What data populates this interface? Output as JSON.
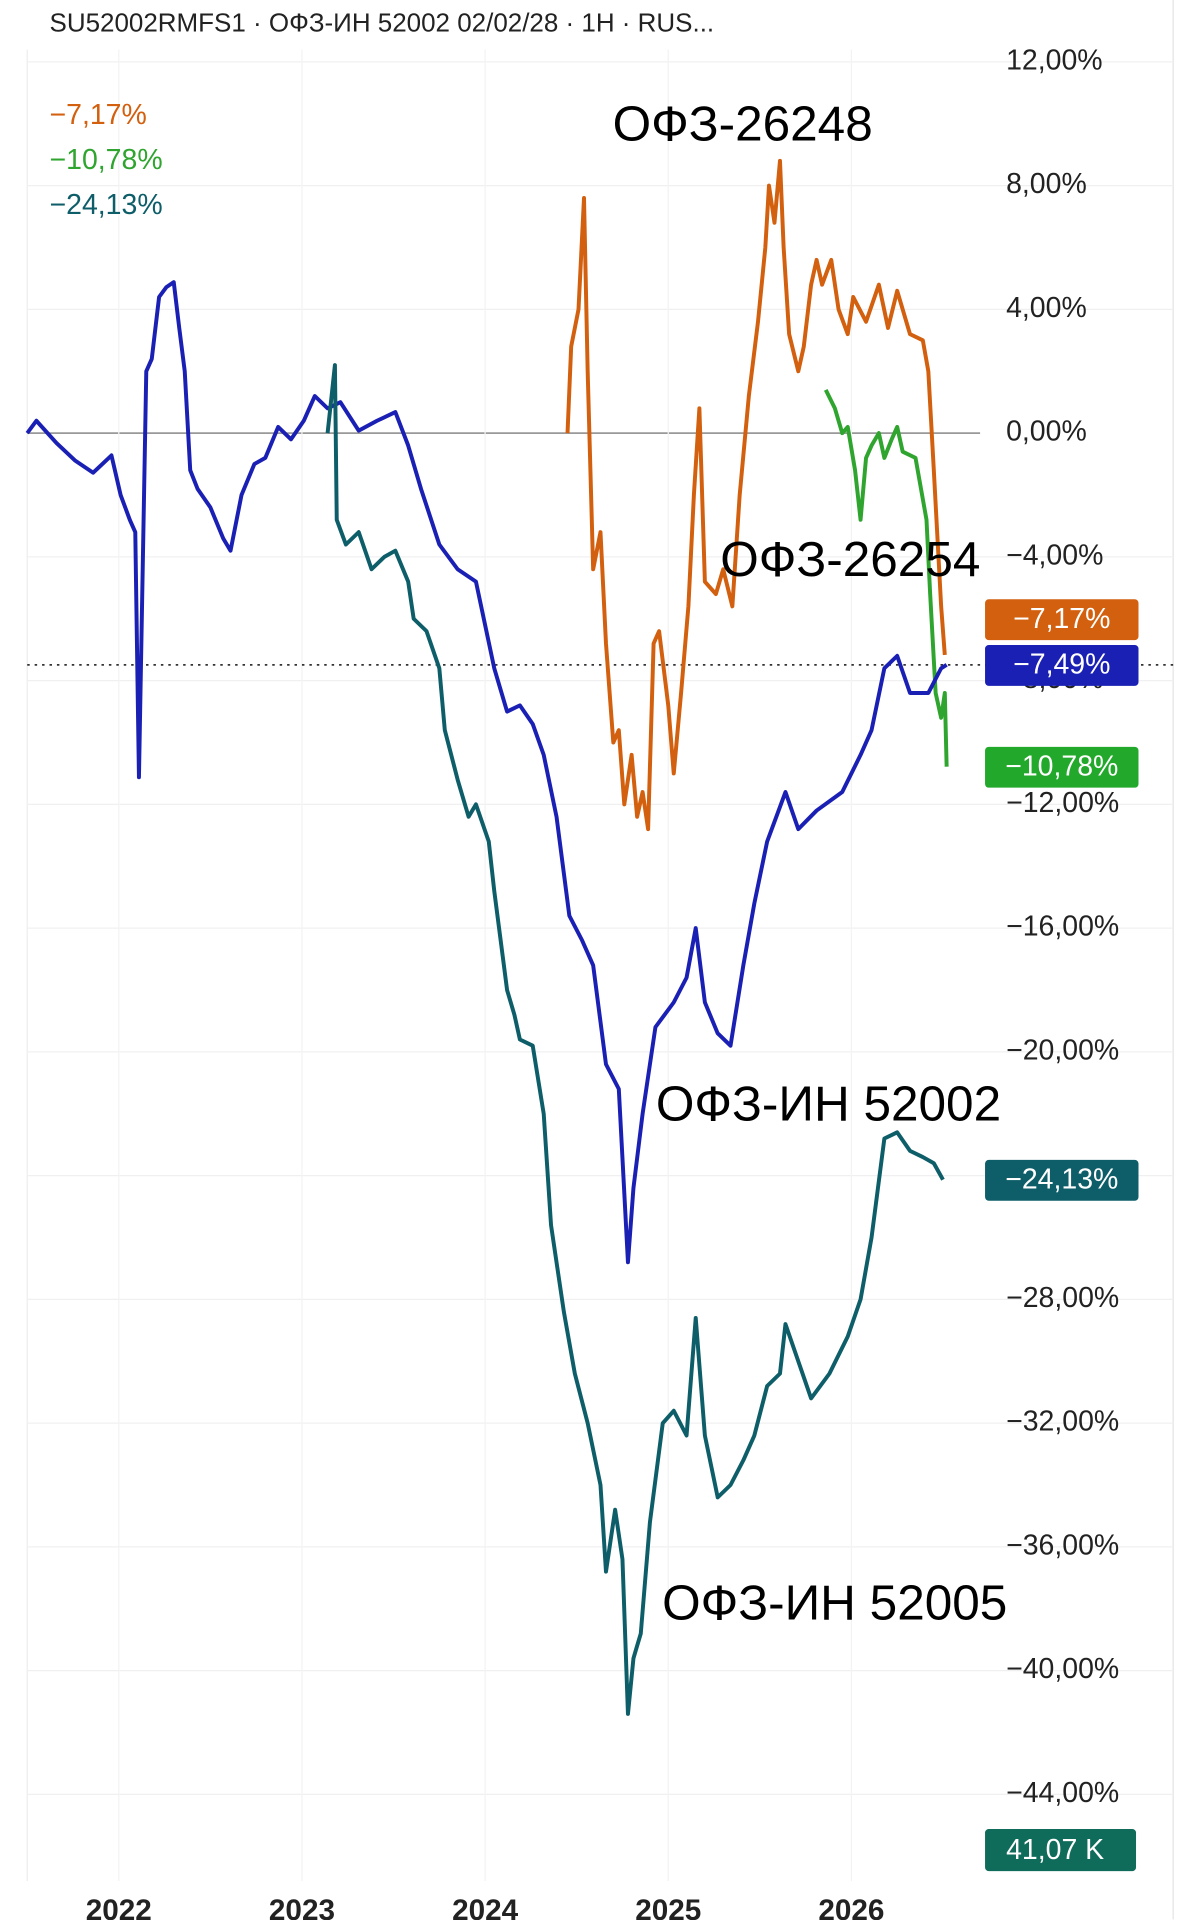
{
  "chart_data": {
    "type": "line",
    "title": "SU52002RMFS1 · ОФЗ-ИН 52002 02/02/28 · 1H · RUS...",
    "xlim": [
      2021.5,
      2026.7
    ],
    "xticks": [
      2022,
      2023,
      2024,
      2025,
      2026
    ],
    "ylim": [
      -46.8,
      14
    ],
    "yticks": [
      {
        "value": 12,
        "label": "12,00%"
      },
      {
        "value": 8,
        "label": "8,00%"
      },
      {
        "value": 4,
        "label": "4,00%"
      },
      {
        "value": 0,
        "label": "0,00%"
      },
      {
        "value": -4,
        "label": "−4,00%"
      },
      {
        "value": -8,
        "label": "−8,00%"
      },
      {
        "value": -12,
        "label": "−12,00%"
      },
      {
        "value": -16,
        "label": "−16,00%"
      },
      {
        "value": -20,
        "label": "−20,00%"
      },
      {
        "value": -24,
        "label": "−24,00%"
      },
      {
        "value": -28,
        "label": "−28,00%"
      },
      {
        "value": -32,
        "label": "−32,00%"
      },
      {
        "value": -36,
        "label": "−36,00%"
      },
      {
        "value": -40,
        "label": "−40,00%"
      },
      {
        "value": -44,
        "label": "−44,00%"
      }
    ],
    "grid": true,
    "volume_label": "41,07 K",
    "series": [
      {
        "name": "ОФЗ-26248",
        "color": "#d2600e",
        "legend": true,
        "last_value_label": "−7,17%",
        "x": [
          2024.45,
          2024.47,
          2024.51,
          2024.54,
          2024.56,
          2024.59,
          2024.63,
          2024.66,
          2024.7,
          2024.73,
          2024.76,
          2024.8,
          2024.83,
          2024.86,
          2024.89,
          2024.92,
          2024.95,
          2025.0,
          2025.03,
          2025.07,
          2025.11,
          2025.14,
          2025.17,
          2025.2,
          2025.26,
          2025.3,
          2025.35,
          2025.39,
          2025.44,
          2025.49,
          2025.53,
          2025.55,
          2025.58,
          2025.61,
          2025.63,
          2025.66,
          2025.71,
          2025.74,
          2025.78,
          2025.81,
          2025.84,
          2025.89,
          2025.93,
          2025.98,
          2026.01,
          2026.08,
          2026.15,
          2026.2,
          2026.25,
          2026.32,
          2026.39,
          2026.42,
          2026.45,
          2026.49,
          2026.51
        ],
        "values": [
          0,
          2.8,
          4.0,
          7.6,
          2.0,
          -4.4,
          -3.2,
          -6.8,
          -10.0,
          -9.6,
          -12.0,
          -10.4,
          -12.4,
          -11.6,
          -12.8,
          -6.8,
          -6.4,
          -8.8,
          -11.0,
          -8.4,
          -5.6,
          -2.0,
          0.8,
          -4.8,
          -5.2,
          -4.4,
          -5.6,
          -2.0,
          1.2,
          3.6,
          6.0,
          8.0,
          6.8,
          8.8,
          6.0,
          3.2,
          2.0,
          2.8,
          4.8,
          5.6,
          4.8,
          5.6,
          4.0,
          3.2,
          4.4,
          3.6,
          4.8,
          3.4,
          4.6,
          3.2,
          3.0,
          2.0,
          -1.2,
          -5.6,
          -7.17
        ]
      },
      {
        "name": "ОФЗ-26254",
        "color": "#2fa52f",
        "legend": true,
        "last_value_label": "−10,78%",
        "x": [
          2025.86,
          2025.91,
          2025.95,
          2025.98,
          2026.02,
          2026.05,
          2026.08,
          2026.11,
          2026.15,
          2026.18,
          2026.22,
          2026.25,
          2026.28,
          2026.35,
          2026.41,
          2026.43,
          2026.46,
          2026.49,
          2026.51,
          2026.52
        ],
        "values": [
          1.4,
          0.8,
          0,
          0.2,
          -1.2,
          -2.8,
          -0.8,
          -0.4,
          0,
          -0.8,
          -0.2,
          0.2,
          -0.6,
          -0.8,
          -2.8,
          -5.2,
          -8.4,
          -9.2,
          -8.4,
          -10.78
        ]
      },
      {
        "name": "ОФЗ-ИН 52002",
        "color": "#1b20b4",
        "legend": false,
        "last_value_label": "−7,49%",
        "x": [
          2021.5,
          2021.55,
          2021.66,
          2021.76,
          2021.86,
          2021.96,
          2022.01,
          2022.06,
          2022.09,
          2022.11,
          2022.15,
          2022.18,
          2022.22,
          2022.26,
          2022.3,
          2022.33,
          2022.36,
          2022.39,
          2022.43,
          2022.5,
          2022.57,
          2022.61,
          2022.67,
          2022.74,
          2022.8,
          2022.87,
          2022.94,
          2023.01,
          2023.07,
          2023.14,
          2023.21,
          2023.31,
          2023.41,
          2023.51,
          2023.58,
          2023.65,
          2023.75,
          2023.85,
          2023.95,
          2024.05,
          2024.12,
          2024.19,
          2024.26,
          2024.32,
          2024.39,
          2024.46,
          2024.53,
          2024.59,
          2024.66,
          2024.73,
          2024.78,
          2024.81,
          2024.86,
          2024.93,
          2025.03,
          2025.1,
          2025.15,
          2025.2,
          2025.27,
          2025.34,
          2025.41,
          2025.47,
          2025.54,
          2025.64,
          2025.71,
          2025.81,
          2025.95,
          2026.05,
          2026.11,
          2026.18,
          2026.25,
          2026.32,
          2026.42,
          2026.49,
          2026.52
        ],
        "values": [
          0,
          0.4,
          -0.32,
          -0.88,
          -1.28,
          -0.72,
          -2.0,
          -2.8,
          -3.2,
          -11.12,
          2.0,
          2.4,
          4.4,
          4.72,
          4.88,
          3.4,
          2.0,
          -1.2,
          -1.8,
          -2.4,
          -3.4,
          -3.8,
          -2.0,
          -1.0,
          -0.8,
          0.2,
          -0.2,
          0.4,
          1.2,
          0.8,
          1.0,
          0.08,
          0.4,
          0.68,
          -0.4,
          -1.8,
          -3.6,
          -4.4,
          -4.8,
          -7.6,
          -9.0,
          -8.8,
          -9.4,
          -10.4,
          -12.4,
          -15.6,
          -16.4,
          -17.2,
          -20.4,
          -21.2,
          -26.8,
          -24.4,
          -22.0,
          -19.2,
          -18.4,
          -17.6,
          -16.0,
          -18.4,
          -19.4,
          -19.8,
          -17.2,
          -15.2,
          -13.2,
          -11.6,
          -12.8,
          -12.2,
          -11.6,
          -10.4,
          -9.6,
          -7.6,
          -7.2,
          -8.4,
          -8.4,
          -7.6,
          -7.49
        ]
      },
      {
        "name": "ОФЗ-ИН 52005",
        "color": "#0e5e69",
        "legend": true,
        "last_value_label": "−24,13%",
        "x": [
          2023.14,
          2023.18,
          2023.19,
          2023.24,
          2023.31,
          2023.38,
          2023.45,
          2023.51,
          2023.58,
          2023.61,
          2023.68,
          2023.75,
          2023.78,
          2023.85,
          2023.91,
          2023.95,
          2024.02,
          2024.05,
          2024.12,
          2024.16,
          2024.19,
          2024.26,
          2024.32,
          2024.36,
          2024.43,
          2024.49,
          2024.56,
          2024.63,
          2024.66,
          2024.71,
          2024.75,
          2024.78,
          2024.81,
          2024.85,
          2024.9,
          2024.97,
          2025.03,
          2025.1,
          2025.15,
          2025.2,
          2025.27,
          2025.34,
          2025.41,
          2025.47,
          2025.54,
          2025.61,
          2025.64,
          2025.71,
          2025.78,
          2025.88,
          2025.98,
          2026.05,
          2026.11,
          2026.18,
          2026.25,
          2026.32,
          2026.39,
          2026.45,
          2026.5
        ],
        "values": [
          0,
          2.2,
          -2.8,
          -3.6,
          -3.2,
          -4.4,
          -4.0,
          -3.8,
          -4.8,
          -6.0,
          -6.4,
          -7.6,
          -9.6,
          -11.2,
          -12.4,
          -12.0,
          -13.2,
          -14.8,
          -18.0,
          -18.8,
          -19.6,
          -19.8,
          -22.0,
          -25.6,
          -28.4,
          -30.4,
          -32.0,
          -34.0,
          -36.8,
          -34.8,
          -36.4,
          -41.4,
          -39.6,
          -38.8,
          -35.2,
          -32.0,
          -31.6,
          -32.4,
          -28.6,
          -32.4,
          -34.4,
          -34.0,
          -33.2,
          -32.4,
          -30.8,
          -30.4,
          -28.8,
          -30.0,
          -31.2,
          -30.4,
          -29.2,
          -28.0,
          -26.0,
          -22.8,
          -22.6,
          -23.2,
          -23.4,
          -23.6,
          -24.13
        ]
      }
    ]
  }
}
